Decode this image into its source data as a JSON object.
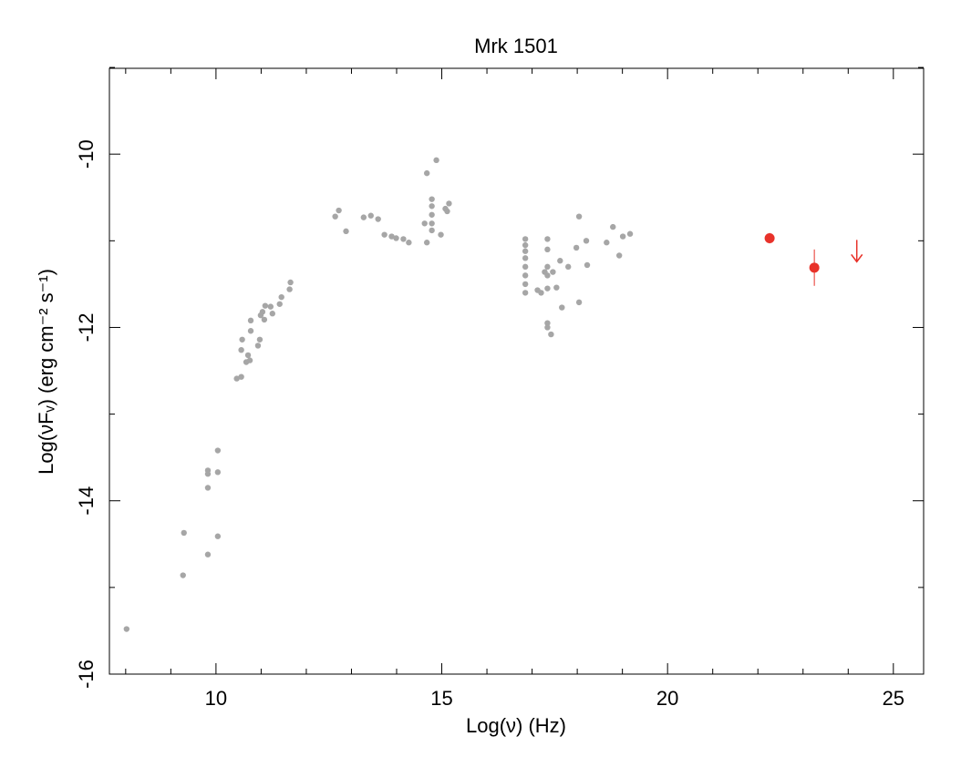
{
  "chart_data": {
    "type": "scatter",
    "title": "Mrk 1501",
    "xlabel": "Log(ν) (Hz)",
    "ylabel": "Log(νFᵥ) (erg cm⁻² s⁻¹)",
    "xlim": [
      7.64,
      25.67
    ],
    "ylim": [
      -16,
      -9.01
    ],
    "xticks": [
      10,
      15,
      20,
      25
    ],
    "yticks": [
      -16,
      -14,
      -12,
      -10
    ],
    "xminorticks": [
      8,
      9,
      11,
      12,
      13,
      14,
      16,
      17,
      18,
      19,
      21,
      22,
      23,
      24
    ],
    "yminorticks": [
      -15,
      -13,
      -11,
      -9
    ],
    "series": [
      {
        "color": "#a6a6a6",
        "marker": "dot",
        "x": [
          8.02,
          9.29,
          9.27,
          9.82,
          9.82,
          9.82,
          9.82,
          10.04,
          10.04,
          10.04,
          10.46,
          10.56,
          10.56,
          10.58,
          10.67,
          10.71,
          10.75,
          10.77,
          10.77,
          10.93,
          10.97,
          10.99,
          11.03,
          11.07,
          11.09,
          11.21,
          11.25,
          11.41,
          11.45,
          11.63,
          11.65,
          12.64,
          12.72,
          12.88,
          13.27,
          13.43,
          13.59,
          13.73,
          13.89,
          13.99,
          14.15,
          14.27,
          14.67,
          14.88,
          14.78,
          14.78,
          14.78,
          14.78,
          14.78,
          14.62,
          14.67,
          14.98,
          15.08,
          15.12,
          15.16,
          16.85,
          16.85,
          16.85,
          16.85,
          16.85,
          16.85,
          16.85,
          16.85,
          17.12,
          17.2,
          17.28,
          17.34,
          17.34,
          17.34,
          17.34,
          17.34,
          17.34,
          17.34,
          17.42,
          17.46,
          17.54,
          17.62,
          17.66,
          17.8,
          17.98,
          18.04,
          18.04,
          18.22,
          18.2,
          18.65,
          18.79,
          18.93,
          19.01,
          19.17
        ],
        "values": [
          -15.48,
          -14.37,
          -14.86,
          -13.65,
          -13.69,
          -13.85,
          -14.62,
          -13.42,
          -13.67,
          -14.41,
          -12.59,
          -12.57,
          -12.26,
          -12.14,
          -12.4,
          -12.32,
          -12.38,
          -12.04,
          -11.92,
          -12.21,
          -12.14,
          -11.86,
          -11.82,
          -11.91,
          -11.75,
          -11.76,
          -11.84,
          -11.73,
          -11.65,
          -11.56,
          -11.48,
          -10.72,
          -10.65,
          -10.89,
          -10.73,
          -10.71,
          -10.75,
          -10.93,
          -10.95,
          -10.97,
          -10.98,
          -11.02,
          -10.22,
          -10.07,
          -10.52,
          -10.6,
          -10.7,
          -10.8,
          -10.88,
          -10.8,
          -11.02,
          -10.93,
          -10.63,
          -10.66,
          -10.57,
          -10.98,
          -11.05,
          -11.12,
          -11.2,
          -11.3,
          -11.4,
          -11.5,
          -11.6,
          -11.57,
          -11.6,
          -11.36,
          -10.98,
          -11.1,
          -11.3,
          -11.4,
          -11.55,
          -11.95,
          -12.0,
          -12.08,
          -11.36,
          -11.54,
          -11.23,
          -11.77,
          -11.3,
          -11.08,
          -11.71,
          -10.72,
          -11.28,
          -11.0,
          -11.02,
          -10.84,
          -11.17,
          -10.95,
          -10.92
        ]
      },
      {
        "color": "#e8322a",
        "marker": "dot-large",
        "x": [
          22.26,
          23.25
        ],
        "values": [
          -10.97,
          -11.31
        ],
        "errors": [
          0.06,
          0.21
        ]
      },
      {
        "color": "#e8322a",
        "marker": "upper-limit",
        "x": [
          24.19
        ],
        "values": [
          -10.99
        ]
      }
    ]
  }
}
